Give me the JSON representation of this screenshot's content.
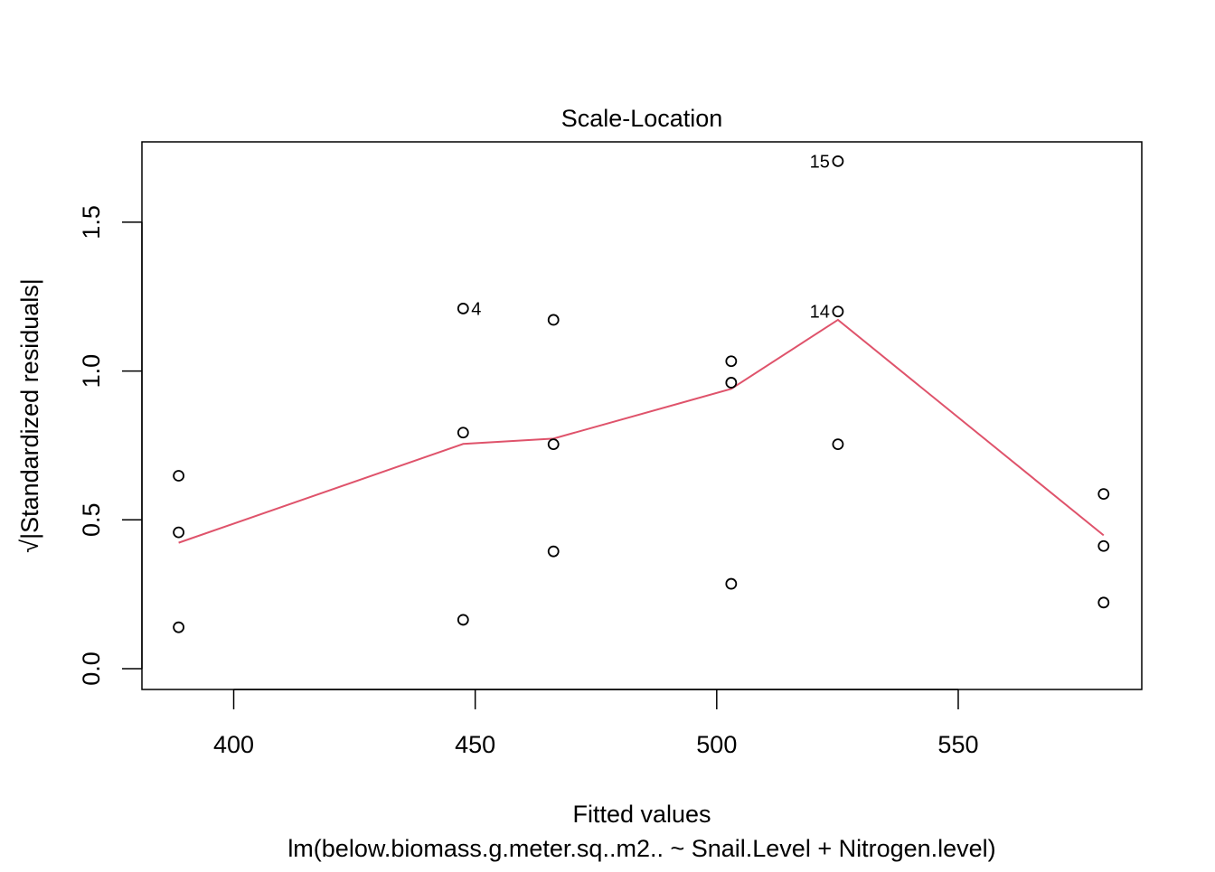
{
  "chart_data": {
    "type": "scatter",
    "title": "Scale-Location",
    "xlabel": "Fitted values",
    "subtitle": "lm(below.biomass.g.meter.sq..m2.. ~ Snail.Level + Nitrogen.level)",
    "ylabel": "√|Standardized residuals|",
    "xlim": [
      381,
      588
    ],
    "ylim": [
      -0.07,
      1.77
    ],
    "xticks": [
      400,
      450,
      500,
      550
    ],
    "yticks": [
      0.0,
      0.5,
      1.0,
      1.5
    ],
    "xtick_labels": [
      "400",
      "450",
      "500",
      "550"
    ],
    "ytick_labels": [
      "0.0",
      "0.5",
      "1.0",
      "1.5"
    ],
    "grid": false,
    "points": [
      {
        "x": 388.6,
        "y": 0.648
      },
      {
        "x": 388.6,
        "y": 0.458
      },
      {
        "x": 388.6,
        "y": 0.139
      },
      {
        "x": 447.5,
        "y": 1.21,
        "label": "4",
        "label_side": "right"
      },
      {
        "x": 447.5,
        "y": 0.793
      },
      {
        "x": 447.5,
        "y": 0.164
      },
      {
        "x": 466.2,
        "y": 1.172
      },
      {
        "x": 466.2,
        "y": 0.754
      },
      {
        "x": 466.2,
        "y": 0.394
      },
      {
        "x": 503.0,
        "y": 1.033
      },
      {
        "x": 503.0,
        "y": 0.961
      },
      {
        "x": 503.0,
        "y": 0.285
      },
      {
        "x": 525.1,
        "y": 1.705,
        "label": "15",
        "label_side": "left"
      },
      {
        "x": 525.1,
        "y": 1.2,
        "label": "14",
        "label_side": "left"
      },
      {
        "x": 525.1,
        "y": 0.754
      },
      {
        "x": 580.1,
        "y": 0.587
      },
      {
        "x": 580.1,
        "y": 0.412
      },
      {
        "x": 580.1,
        "y": 0.222
      }
    ],
    "smoother": {
      "color": "#DF536B",
      "x": [
        388.6,
        447.5,
        466.2,
        503.0,
        525.1,
        580.1
      ],
      "y": [
        0.423,
        0.755,
        0.773,
        0.94,
        1.172,
        0.448
      ]
    }
  }
}
